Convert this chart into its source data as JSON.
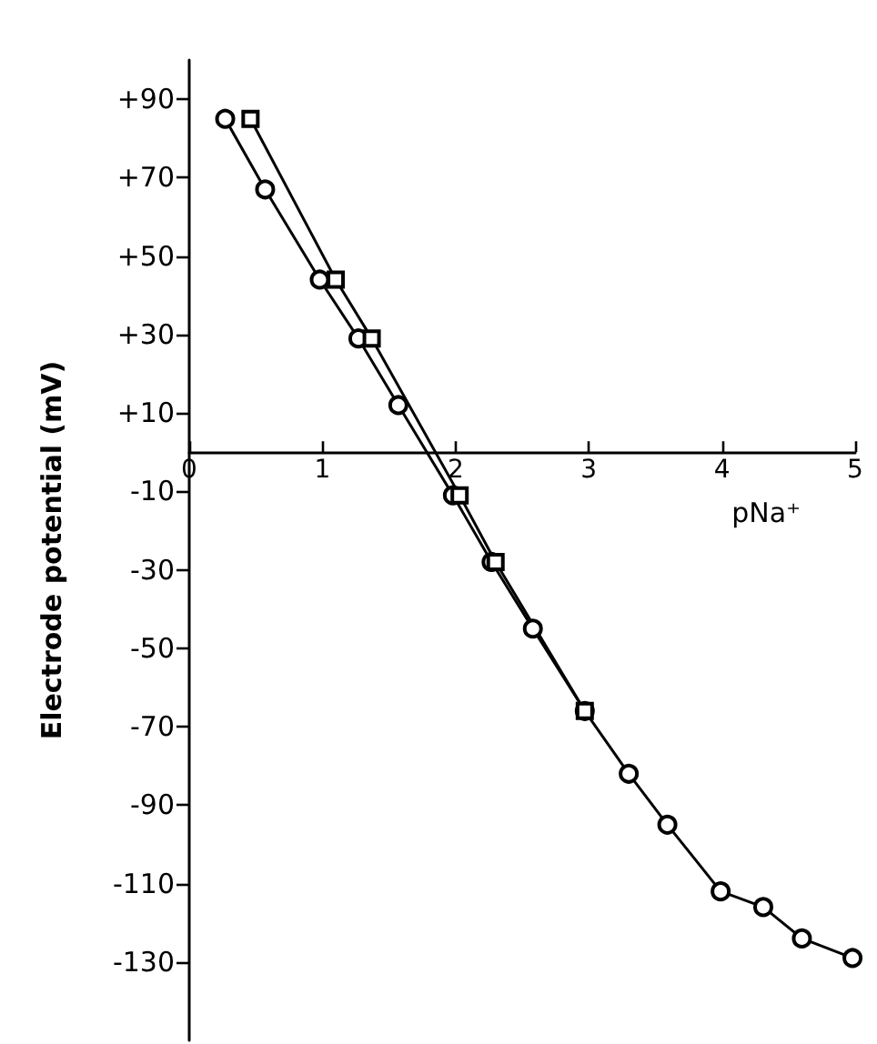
{
  "chart_data": {
    "type": "line",
    "xlabel": "pNa⁺",
    "ylabel": "Electrode potential (mV)",
    "xlim": [
      0,
      5
    ],
    "xticks": [
      0,
      1,
      2,
      3,
      4,
      5
    ],
    "ylim": [
      -150,
      100
    ],
    "yticks": [
      {
        "value": 90,
        "label": "+90"
      },
      {
        "value": 70,
        "label": "+70"
      },
      {
        "value": 50,
        "label": "+50"
      },
      {
        "value": 30,
        "label": "+30"
      },
      {
        "value": 10,
        "label": "+10"
      },
      -10,
      -30,
      -50,
      -70,
      -90,
      -110,
      -130
    ],
    "grid": false,
    "line_style": "solid",
    "series": [
      {
        "color": "#000000",
        "marker": "circle",
        "x": [
          0.27,
          0.57,
          0.98,
          1.27,
          1.57,
          1.98,
          2.27,
          2.58,
          2.97,
          3.3,
          3.59,
          3.99,
          4.31,
          4.6,
          4.98
        ],
        "values": [
          85,
          67,
          44,
          29,
          12,
          -11,
          -28,
          -45,
          -66,
          -82,
          -95,
          -112,
          -116,
          -124,
          -129
        ]
      },
      {
        "color": "#000000",
        "marker": "square",
        "x": [
          0.46,
          1.1,
          1.37,
          2.03,
          2.3,
          2.97
        ],
        "values": [
          85,
          44,
          29,
          -11,
          -28,
          -66
        ]
      }
    ]
  }
}
